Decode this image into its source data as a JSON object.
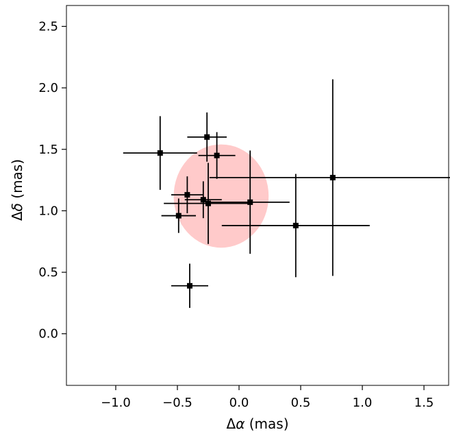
{
  "chart_data": {
    "type": "scatter",
    "title": "",
    "xlabel_prefix": "Δ",
    "xlabel_symbol": "α",
    "xlabel_unit": " (mas)",
    "ylabel_prefix": "Δ",
    "ylabel_symbol": "δ",
    "ylabel_unit": " (mas)",
    "xlim": [
      -1.4,
      1.7
    ],
    "ylim": [
      -0.42,
      2.67
    ],
    "xticks": [
      -1.0,
      -0.5,
      0.0,
      0.5,
      1.0,
      1.5
    ],
    "xtick_labels": [
      "−1.0",
      "−0.5",
      "0.0",
      "0.5",
      "1.0",
      "1.5"
    ],
    "yticks": [
      0.0,
      0.5,
      1.0,
      1.5,
      2.0,
      2.5
    ],
    "ytick_labels": [
      "0.0",
      "0.5",
      "1.0",
      "1.5",
      "2.0",
      "2.5"
    ],
    "grid": false,
    "marker_color": "#000000",
    "points": [
      {
        "x": -0.64,
        "y": 1.47,
        "xerr": [
          0.3,
          0.3
        ],
        "yerr": [
          0.3,
          0.3
        ]
      },
      {
        "x": -0.26,
        "y": 1.6,
        "xerr": [
          0.16,
          0.16
        ],
        "yerr": [
          0.2,
          0.2
        ]
      },
      {
        "x": -0.18,
        "y": 1.45,
        "xerr": [
          0.15,
          0.15
        ],
        "yerr": [
          0.19,
          0.19
        ]
      },
      {
        "x": 0.76,
        "y": 1.27,
        "xerr": [
          1.0,
          1.0
        ],
        "yerr": [
          0.8,
          0.8
        ]
      },
      {
        "x": -0.42,
        "y": 1.13,
        "xerr": [
          0.13,
          0.13
        ],
        "yerr": [
          0.15,
          0.15
        ]
      },
      {
        "x": -0.29,
        "y": 1.09,
        "xerr": [
          0.15,
          0.15
        ],
        "yerr": [
          0.15,
          0.15
        ]
      },
      {
        "x": -0.25,
        "y": 1.06,
        "xerr": [
          0.36,
          0.36
        ],
        "yerr": [
          0.33,
          0.33
        ]
      },
      {
        "x": 0.09,
        "y": 1.07,
        "xerr": [
          0.32,
          0.32
        ],
        "yerr": [
          0.42,
          0.42
        ]
      },
      {
        "x": -0.49,
        "y": 0.96,
        "xerr": [
          0.14,
          0.14
        ],
        "yerr": [
          0.14,
          0.14
        ]
      },
      {
        "x": 0.46,
        "y": 0.88,
        "xerr": [
          0.6,
          0.6
        ],
        "yerr": [
          0.42,
          0.42
        ]
      },
      {
        "x": -0.4,
        "y": 0.39,
        "xerr": [
          0.15,
          0.15
        ],
        "yerr": [
          0.18,
          0.18
        ]
      }
    ],
    "region": {
      "cx": -0.145,
      "cy": 1.12,
      "rx": 0.385,
      "ry": 0.42,
      "color": "#ffcaca"
    }
  }
}
